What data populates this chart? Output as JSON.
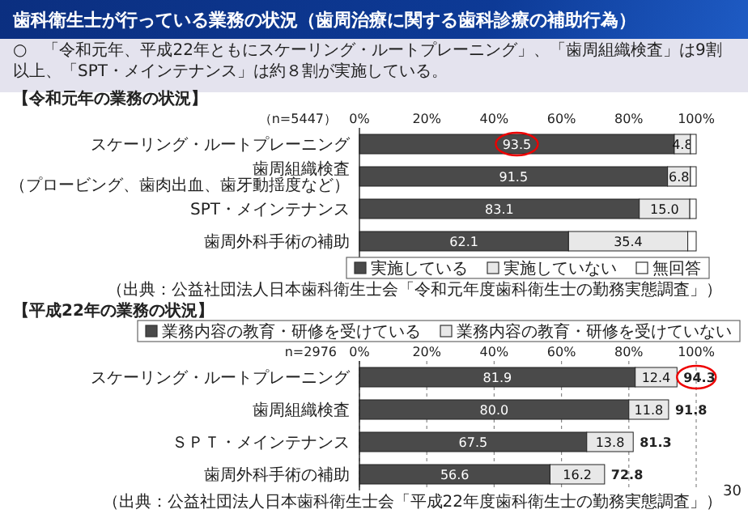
{
  "chart_data": [
    {
      "type": "other",
      "title": "歯科衛生士が行っている業務の状況（歯周治療に関する歯科診療の補助行為）",
      "annotations": [
        "○　「令和元年、平成22年ともにスケーリング・ルートプレーニング」、「歯周組織検査」は9割以上、「SPT・メインテナンス」は約８割が実施している。",
        "30"
      ]
    },
    {
      "type": "bar",
      "orientation": "horizontal",
      "stacked": true,
      "title": "【令和元年の業務の状況】",
      "categories": [
        "スケーリング・ルートプレーニング",
        "歯周組織検査（プロービング、歯肉出血、歯牙動揺度など）",
        "SPT・メインテナンス",
        "歯周外科手術の補助"
      ],
      "xlim": [
        0,
        100
      ],
      "xticks": [
        {
          "value": 0,
          "label": "0%"
        },
        {
          "value": 20,
          "label": "20%"
        },
        {
          "value": 40,
          "label": "40%"
        },
        {
          "value": 60,
          "label": "60%"
        },
        {
          "value": 80,
          "label": "80%"
        },
        {
          "value": 100,
          "label": "100%"
        }
      ],
      "legend": "bottom",
      "series": [
        {
          "name": "実施している",
          "color": "#4a4a4a",
          "values": [
            93.5,
            91.5,
            83.1,
            62.1
          ],
          "value_labels": [
            "93.5",
            "91.5",
            "83.1",
            "62.1"
          ]
        },
        {
          "name": "実施していない",
          "color": "#e8e8e8",
          "values": [
            4.8,
            6.8,
            15.0,
            35.4
          ],
          "value_labels": [
            "4.8",
            "6.8",
            "15.0",
            "35.4"
          ]
        },
        {
          "name": "無回答",
          "color": "#ffffff",
          "values": [
            1.7,
            1.7,
            1.9,
            2.5
          ]
        }
      ],
      "annotations": [
        "（n=5447）",
        "（出典：公益社団法人日本歯科衛生士会「令和元年度歯科衛生士の勤務実態調査」）"
      ]
    },
    {
      "type": "bar",
      "orientation": "horizontal",
      "stacked": true,
      "title": "【平成22年の業務の状況】",
      "categories": [
        "スケーリング・ルートプレーニング",
        "歯周組織検査",
        "ＳＰＴ・メインテナンス",
        "歯周外科手術の補助"
      ],
      "xlim": [
        0,
        100
      ],
      "xticks": [
        {
          "value": 0,
          "label": "0%"
        },
        {
          "value": 20,
          "label": "20%"
        },
        {
          "value": 40,
          "label": "40%"
        },
        {
          "value": 60,
          "label": "60%"
        },
        {
          "value": 80,
          "label": "80%"
        },
        {
          "value": 100,
          "label": "100%"
        }
      ],
      "legend": "top",
      "grid": "x",
      "series": [
        {
          "name": "業務内容の教育・研修を受けている",
          "color": "#4a4a4a",
          "values": [
            81.9,
            80.0,
            67.5,
            56.6
          ],
          "value_labels": [
            "81.9",
            "80.0",
            "67.5",
            "56.6"
          ]
        },
        {
          "name": "業務内容の教育・研修を受けていない",
          "color": "#e8e8e8",
          "values": [
            12.4,
            11.8,
            13.8,
            16.2
          ],
          "value_labels": [
            "12.4",
            "11.8",
            "13.8",
            "16.2"
          ]
        }
      ],
      "totals": [
        "94.3",
        "91.8",
        "81.3",
        "72.8"
      ],
      "annotations": [
        "n=2976",
        "（出典：公益社団法人日本歯科衛生士会「平成22年度歯科衛生士の勤務実態調査」）"
      ]
    }
  ]
}
